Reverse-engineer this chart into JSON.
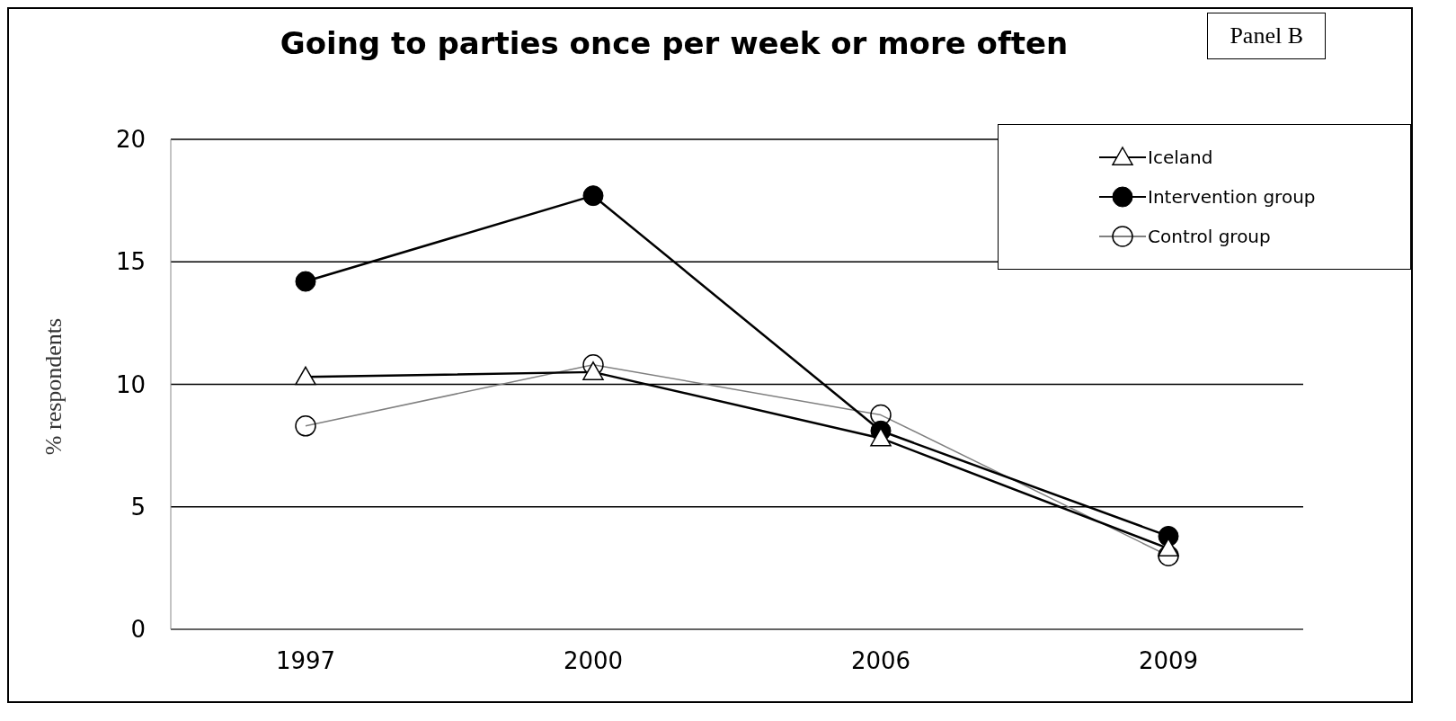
{
  "chart_data": {
    "type": "line",
    "title": "Going to parties once per week or more often",
    "ylabel": "% respondents",
    "annotations": [
      "Panel B"
    ],
    "categories": [
      "1997",
      "2000",
      "2006",
      "2009"
    ],
    "series": [
      {
        "name": "Iceland",
        "color": "#000000",
        "marker": "triangle",
        "values": [
          10.3,
          10.5,
          7.8,
          3.3
        ]
      },
      {
        "name": "Intervention group",
        "color": "#000000",
        "marker": "circle",
        "values": [
          14.2,
          17.7,
          8.1,
          3.8
        ]
      },
      {
        "name": "Control group",
        "color": "#808080",
        "marker": "open-circle",
        "values": [
          8.3,
          10.8,
          8.75,
          3.0
        ]
      }
    ],
    "ylim": [
      0,
      20
    ],
    "yticks": [
      0,
      5,
      10,
      15,
      20
    ],
    "grid": "y",
    "legend": "top right"
  }
}
